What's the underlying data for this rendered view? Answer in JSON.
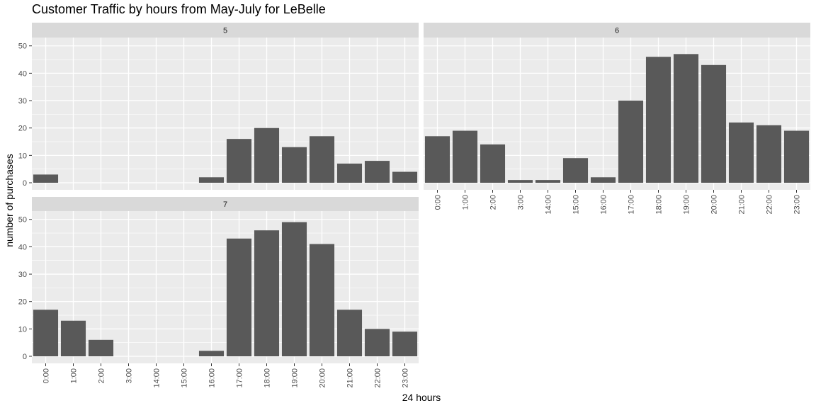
{
  "title": "Customer Traffic by hours from May-July for LeBelle",
  "xlabel": "24 hours",
  "ylabel": "number of purchases",
  "colors": {
    "bar": "#595959",
    "panel_bg": "#ebebeb",
    "strip_bg": "#d9d9d9",
    "grid": "#ffffff",
    "tick_text": "#4d4d4d",
    "strip_text": "#1a1a1a"
  },
  "chart_data": {
    "type": "bar",
    "facet_by": "month",
    "ylim": [
      0,
      52
    ],
    "yticks": [
      0,
      10,
      20,
      30,
      40,
      50
    ],
    "grid": true,
    "scales": "free_x",
    "panels": [
      {
        "strip": "5",
        "categories": [
          "0:00",
          "1:00",
          "2:00",
          "3:00",
          "14:00",
          "15:00",
          "16:00",
          "17:00",
          "18:00",
          "19:00",
          "20:00",
          "21:00",
          "22:00",
          "23:00"
        ],
        "values": [
          3,
          0,
          0,
          0,
          0,
          0,
          2,
          16,
          20,
          13,
          17,
          7,
          8,
          4
        ]
      },
      {
        "strip": "6",
        "categories": [
          "0:00",
          "1:00",
          "2:00",
          "3:00",
          "14:00",
          "15:00",
          "16:00",
          "17:00",
          "18:00",
          "19:00",
          "20:00",
          "21:00",
          "22:00",
          "23:00"
        ],
        "values": [
          17,
          19,
          14,
          1,
          1,
          9,
          2,
          30,
          46,
          47,
          43,
          22,
          21,
          19
        ]
      },
      {
        "strip": "7",
        "categories": [
          "0:00",
          "1:00",
          "2:00",
          "3:00",
          "14:00",
          "15:00",
          "16:00",
          "17:00",
          "18:00",
          "19:00",
          "20:00",
          "21:00",
          "22:00",
          "23:00"
        ],
        "values": [
          17,
          13,
          6,
          0,
          0,
          0,
          2,
          43,
          46,
          49,
          41,
          17,
          10,
          9
        ]
      }
    ]
  }
}
